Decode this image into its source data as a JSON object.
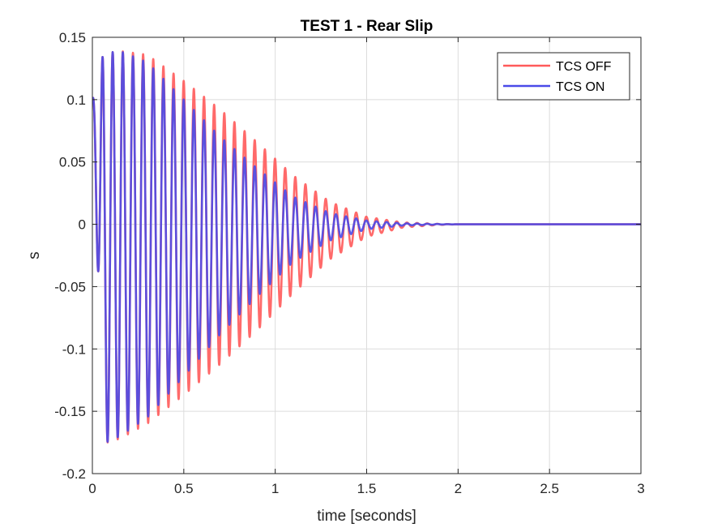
{
  "chart_data": {
    "type": "line",
    "title": "TEST 1 - Rear Slip",
    "xlabel": "time [seconds]",
    "ylabel": "s",
    "xlim": [
      0,
      3
    ],
    "ylim": [
      -0.2,
      0.15
    ],
    "xticks": [
      0,
      0.5,
      1,
      1.5,
      2,
      2.5,
      3
    ],
    "xtick_labels": [
      "0",
      "0.5",
      "1",
      "1.5",
      "2",
      "2.5",
      "3"
    ],
    "yticks": [
      -0.2,
      -0.15,
      -0.1,
      -0.05,
      0,
      0.05,
      0.1,
      0.15
    ],
    "ytick_labels": [
      "-0.2",
      "-0.15",
      "-0.1",
      "-0.05",
      "0",
      "0.05",
      "0.1",
      "0.15"
    ],
    "grid": true,
    "legend_position": "top-right",
    "series": [
      {
        "name": "TCS OFF",
        "color": "#ff5a5a",
        "oscillation_period": 0.0555,
        "x_envelope": [
          0,
          0.06,
          0.15,
          0.3,
          0.5,
          0.7,
          0.9,
          1.1,
          1.3,
          1.5,
          1.7,
          1.9,
          2.0,
          3.0
        ],
        "upper_envelope": [
          0.1,
          0.137,
          0.139,
          0.136,
          0.115,
          0.092,
          0.066,
          0.039,
          0.018,
          0.006,
          0.0015,
          0.0003,
          0.0,
          0.0
        ],
        "lower_envelope": [
          0.1,
          -0.176,
          -0.172,
          -0.16,
          -0.137,
          -0.112,
          -0.085,
          -0.055,
          -0.028,
          -0.01,
          -0.0025,
          -0.0005,
          0.0,
          0.0
        ]
      },
      {
        "name": "TCS ON",
        "color": "#4a4ae8",
        "oscillation_period": 0.0555,
        "x_envelope": [
          0,
          0.06,
          0.15,
          0.3,
          0.5,
          0.7,
          0.9,
          1.1,
          1.3,
          1.5,
          1.7,
          1.9,
          2.0,
          3.0
        ],
        "upper_envelope": [
          0.1,
          0.137,
          0.139,
          0.13,
          0.1,
          0.07,
          0.045,
          0.022,
          0.009,
          0.003,
          0.0008,
          0.0002,
          0.0,
          0.0
        ],
        "lower_envelope": [
          0.1,
          -0.176,
          -0.17,
          -0.155,
          -0.122,
          -0.088,
          -0.058,
          -0.03,
          -0.013,
          -0.004,
          -0.001,
          -0.0002,
          0.0,
          0.0
        ]
      }
    ]
  }
}
